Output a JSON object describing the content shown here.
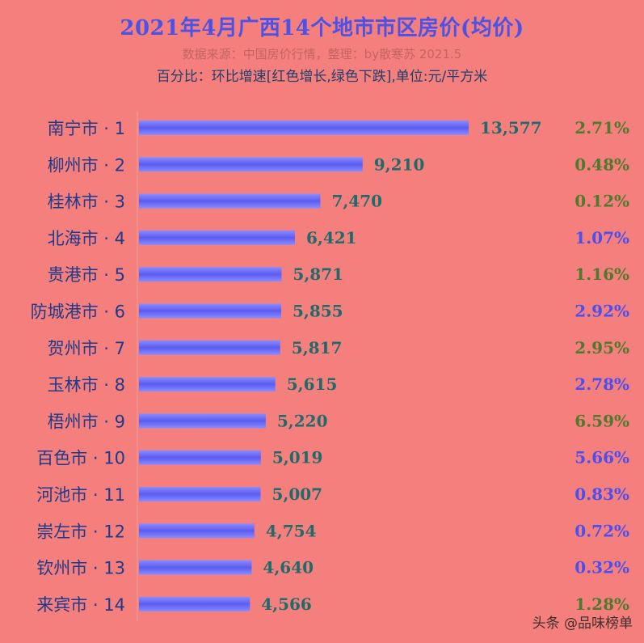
{
  "header": {
    "title": "2021年4月广西14个地市市区房价(均价)",
    "subtitle": "数据来源：中国房价行情，整理：by散寒苏 2021.5",
    "note": "百分比：环比增速[红色增长,绿色下跌],单位:元/平方米"
  },
  "watermark": "头条 @品味榜单",
  "colors": {
    "background": "#f47f7c",
    "bar": "#5b5cf0",
    "pct_green": "#4f7a2e",
    "pct_blue": "#4b4ef0"
  },
  "chart_data": {
    "type": "bar",
    "orientation": "horizontal",
    "categories": [
      "南宁市 · 1",
      "柳州市 · 2",
      "桂林市 · 3",
      "北海市 · 4",
      "贵港市 · 5",
      "防城港市 · 6",
      "贺州市 · 7",
      "玉林市 · 8",
      "梧州市 · 9",
      "百色市 · 10",
      "河池市 · 11",
      "崇左市 · 12",
      "钦州市 · 13",
      "来宾市 · 14"
    ],
    "values": [
      13577,
      9210,
      7470,
      6421,
      5871,
      5855,
      5817,
      5615,
      5220,
      5019,
      5007,
      4754,
      4640,
      4566
    ],
    "value_labels": [
      "13,577",
      "9,210",
      "7,470",
      "6,421",
      "5,871",
      "5,855",
      "5,817",
      "5,615",
      "5,220",
      "5,019",
      "5,007",
      "4,754",
      "4,640",
      "4,566"
    ],
    "pct_labels": [
      "2.71%",
      "0.48%",
      "0.12%",
      "1.07%",
      "1.16%",
      "2.92%",
      "2.95%",
      "2.78%",
      "6.59%",
      "5.66%",
      "0.83%",
      "0.72%",
      "0.32%",
      "1.28%"
    ],
    "pct_colors": [
      "green",
      "green",
      "green",
      "blue",
      "green",
      "blue",
      "green",
      "blue",
      "green",
      "blue",
      "blue",
      "blue",
      "blue",
      "green"
    ],
    "xlim": [
      0,
      13577
    ],
    "grid": false,
    "legend": "none"
  }
}
